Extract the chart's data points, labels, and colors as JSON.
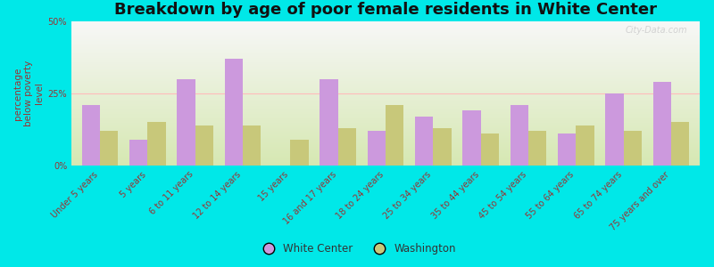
{
  "title": "Breakdown by age of poor female residents in White Center",
  "ylabel": "percentage\nbelow poverty\nlevel",
  "categories": [
    "Under 5 years",
    "5 years",
    "6 to 11 years",
    "12 to 14 years",
    "15 years",
    "16 and 17 years",
    "18 to 24 years",
    "25 to 34 years",
    "35 to 44 years",
    "45 to 54 years",
    "55 to 64 years",
    "65 to 74 years",
    "75 years and over"
  ],
  "white_center": [
    21,
    9,
    30,
    37,
    0,
    30,
    12,
    17,
    19,
    21,
    11,
    25,
    29
  ],
  "washington": [
    12,
    15,
    14,
    14,
    9,
    13,
    21,
    13,
    11,
    12,
    14,
    12,
    15
  ],
  "bar_color_wc": "#cc99dd",
  "bar_color_wa": "#c8c87a",
  "background_outer": "#00e8e8",
  "background_plot_top": "#f8f8f8",
  "background_plot_bottom": "#d8e8b0",
  "ylim": [
    0,
    50
  ],
  "yticks": [
    0,
    25,
    50
  ],
  "ytick_labels": [
    "0%",
    "25%",
    "50%"
  ],
  "title_fontsize": 13,
  "axis_label_fontsize": 7.5,
  "tick_fontsize": 7,
  "legend_label_wc": "White Center",
  "legend_label_wa": "Washington",
  "watermark": "City-Data.com",
  "tick_color": "#993333",
  "label_color": "#993333"
}
